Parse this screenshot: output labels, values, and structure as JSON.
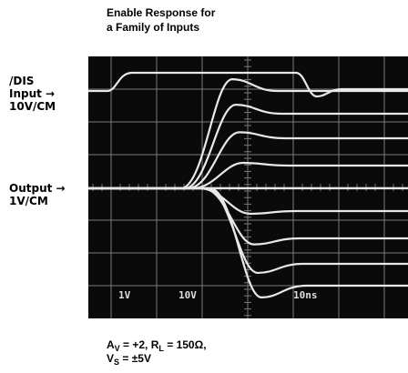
{
  "title": {
    "line1": "Enable Response for",
    "line2": "a Family of Inputs"
  },
  "labels": {
    "dis": "/DIS",
    "input": "Input →",
    "input_scale": "10V/CM",
    "output": "Output →",
    "output_scale": "1V/CM"
  },
  "screen": {
    "scale1": "1V",
    "scale2": "10V",
    "time": "10ns"
  },
  "caption": {
    "line1": [
      "A",
      "V",
      " = +2, R",
      "L",
      " = 150Ω,"
    ],
    "line2": [
      "V",
      "S",
      " = ±5V"
    ]
  }
}
